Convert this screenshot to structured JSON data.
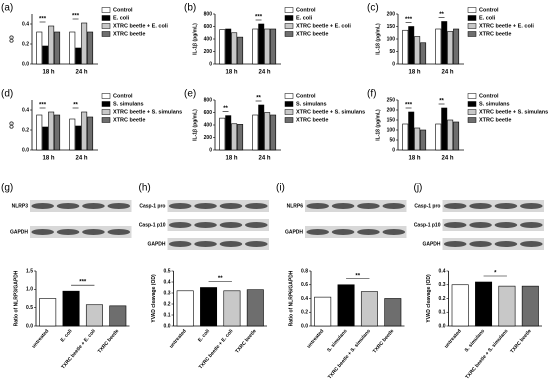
{
  "chart_data": [
    {
      "type": "grouped_bar",
      "label": "(a)",
      "ylabel": "OD",
      "categories": [
        "18 h",
        "24 h"
      ],
      "series": [
        {
          "name": "Control",
          "color": "#ffffff",
          "values": [
            0.32,
            0.32
          ]
        },
        {
          "name": "E. coli",
          "color": "#000000",
          "values": [
            0.18,
            0.16
          ]
        },
        {
          "name": "XTRC beetle + E. coli",
          "color": "#c8c8c8",
          "values": [
            0.38,
            0.41
          ]
        },
        {
          "name": "XTRC beetle",
          "color": "#6e6e6e",
          "values": [
            0.32,
            0.32
          ]
        }
      ],
      "annotations": [
        "***",
        "***"
      ],
      "ylim": [
        0,
        0.5
      ],
      "yticks": [
        {
          "value": 0,
          "label": "0.0"
        },
        {
          "value": 0.2,
          "label": "0.2"
        },
        {
          "value": 0.4,
          "label": "0.4"
        }
      ]
    },
    {
      "type": "grouped_bar",
      "label": "(b)",
      "ylabel": "IL-1β (pg/mL)",
      "categories": [
        "18 h",
        "24 h"
      ],
      "series": [
        {
          "name": "Control",
          "color": "#ffffff",
          "values": [
            550,
            560
          ]
        },
        {
          "name": "E. coli",
          "color": "#000000",
          "values": [
            560,
            640
          ]
        },
        {
          "name": "XTRC beetle + E. coli",
          "color": "#c8c8c8",
          "values": [
            500,
            560
          ]
        },
        {
          "name": "XTRC beetle",
          "color": "#6e6e6e",
          "values": [
            430,
            560
          ]
        }
      ],
      "annotations": [
        null,
        "***"
      ],
      "ylim": [
        0,
        800
      ],
      "yticks": [
        0,
        200,
        400,
        600,
        800
      ]
    },
    {
      "type": "grouped_bar",
      "label": "(c)",
      "ylabel": "IL-18 (pg/mL)",
      "categories": [
        "18 h",
        "24 h"
      ],
      "series": [
        {
          "name": "Control",
          "color": "#ffffff",
          "values": [
            135,
            140
          ]
        },
        {
          "name": "E. coli",
          "color": "#000000",
          "values": [
            150,
            170
          ]
        },
        {
          "name": "XTRC beetle + E. coli",
          "color": "#c8c8c8",
          "values": [
            110,
            130
          ]
        },
        {
          "name": "XTRC beetle",
          "color": "#6e6e6e",
          "values": [
            85,
            140
          ]
        }
      ],
      "annotations": [
        "***",
        "**"
      ],
      "ylim": [
        0,
        200
      ],
      "yticks": [
        0,
        50,
        100,
        150,
        200
      ]
    },
    {
      "type": "grouped_bar",
      "label": "(d)",
      "ylabel": "OD",
      "categories": [
        "18 h",
        "24 h"
      ],
      "series": [
        {
          "name": "Control",
          "color": "#ffffff",
          "values": [
            0.35,
            0.31
          ]
        },
        {
          "name": "S. simulans",
          "color": "#000000",
          "values": [
            0.23,
            0.24
          ]
        },
        {
          "name": "XTRC beetle + S. simulans",
          "color": "#c8c8c8",
          "values": [
            0.38,
            0.38
          ]
        },
        {
          "name": "XTRC beetle",
          "color": "#6e6e6e",
          "values": [
            0.35,
            0.33
          ]
        }
      ],
      "annotations": [
        "***",
        "**"
      ],
      "ylim": [
        0,
        0.5
      ],
      "yticks": [
        {
          "value": 0,
          "label": "0.0"
        },
        {
          "value": 0.2,
          "label": "0.2"
        },
        {
          "value": 0.4,
          "label": "0.4"
        }
      ]
    },
    {
      "type": "grouped_bar",
      "label": "(e)",
      "ylabel": "IL-1β (pg/mL)",
      "categories": [
        "18 h",
        "24 h"
      ],
      "series": [
        {
          "name": "Control",
          "color": "#ffffff",
          "values": [
            510,
            560
          ]
        },
        {
          "name": "S. simulans",
          "color": "#000000",
          "values": [
            550,
            720
          ]
        },
        {
          "name": "XTRC beetle + S. simulans",
          "color": "#c8c8c8",
          "values": [
            420,
            600
          ]
        },
        {
          "name": "XTRC beetle",
          "color": "#6e6e6e",
          "values": [
            410,
            560
          ]
        }
      ],
      "annotations": [
        "**",
        "**"
      ],
      "ylim": [
        0,
        800
      ],
      "yticks": [
        0,
        200,
        400,
        600,
        800
      ]
    },
    {
      "type": "grouped_bar",
      "label": "(f)",
      "ylabel": "IL-18 (pg/mL)",
      "categories": [
        "18 h",
        "24 h"
      ],
      "series": [
        {
          "name": "Control",
          "color": "#ffffff",
          "values": [
            130,
            130
          ]
        },
        {
          "name": "S. simulans",
          "color": "#000000",
          "values": [
            190,
            210
          ]
        },
        {
          "name": "XTRC beetle + S. simulans",
          "color": "#c8c8c8",
          "values": [
            110,
            150
          ]
        },
        {
          "name": "XTRC beetle",
          "color": "#6e6e6e",
          "values": [
            100,
            140
          ]
        }
      ],
      "annotations": [
        "***",
        "**"
      ],
      "ylim": [
        0,
        250
      ],
      "yticks": [
        0,
        50,
        100,
        150,
        200,
        250
      ]
    },
    {
      "type": "bar",
      "label": "(g)",
      "blot_labels": [
        "NLRP3",
        "GAPDH"
      ],
      "ylabel": "Ratio of NLRP3/GAPDH",
      "categories": [
        "untreated",
        "E. coli",
        "TXRC beetle + E. coli",
        "TXRC beetle"
      ],
      "values": [
        0.75,
        0.95,
        0.58,
        0.55
      ],
      "colors": [
        "#ffffff",
        "#000000",
        "#c8c8c8",
        "#6e6e6e"
      ],
      "annotation": "***",
      "ylim": [
        0,
        1.5
      ],
      "yticks": [
        {
          "value": 0,
          "label": "0.0"
        },
        {
          "value": 0.5,
          "label": "0.5"
        },
        {
          "value": 1,
          "label": "1.0"
        },
        {
          "value": 1.5,
          "label": "1.5"
        }
      ]
    },
    {
      "type": "bar",
      "label": "(h)",
      "blot_labels": [
        "Casp-1 pro",
        "Casp-1 p10",
        "GAPDH"
      ],
      "ylabel": "YVAD cleavage (OD)",
      "categories": [
        "untreated",
        "E. coli",
        "TXRC beetle + E. coli",
        "TXRC beetle"
      ],
      "values": [
        0.32,
        0.35,
        0.32,
        0.33
      ],
      "colors": [
        "#ffffff",
        "#000000",
        "#c8c8c8",
        "#6e6e6e"
      ],
      "annotation": "**",
      "ylim": [
        0,
        0.5
      ],
      "yticks": [
        {
          "value": 0,
          "label": "0.0"
        },
        {
          "value": 0.1,
          "label": "0.1"
        },
        {
          "value": 0.2,
          "label": "0.2"
        },
        {
          "value": 0.3,
          "label": "0.3"
        },
        {
          "value": 0.4,
          "label": "0.4"
        },
        {
          "value": 0.5,
          "label": "0.5"
        }
      ]
    },
    {
      "type": "bar",
      "label": "(i)",
      "blot_labels": [
        "NLRP6",
        "GAPDH"
      ],
      "ylabel": "Ratio of NLRP6/GAPDH",
      "categories": [
        "untreated",
        "S. simulans",
        "TXRC beetle + S. simulans",
        "TXRC beetle"
      ],
      "values": [
        0.42,
        0.6,
        0.5,
        0.4
      ],
      "colors": [
        "#ffffff",
        "#000000",
        "#c8c8c8",
        "#6e6e6e"
      ],
      "annotation": "**",
      "ylim": [
        0,
        0.8
      ],
      "yticks": [
        {
          "value": 0,
          "label": "0.0"
        },
        {
          "value": 0.2,
          "label": "0.2"
        },
        {
          "value": 0.4,
          "label": "0.4"
        },
        {
          "value": 0.6,
          "label": "0.6"
        },
        {
          "value": 0.8,
          "label": "0.8"
        }
      ]
    },
    {
      "type": "bar",
      "label": "(j)",
      "blot_labels": [
        "Casp-1 pro",
        "Casp-1 p10",
        "GAPDH"
      ],
      "ylabel": "YVAD cleavage (OD)",
      "categories": [
        "untreated",
        "S. simulans",
        "TXRC beetle + S. simulans",
        "TXRC beetle"
      ],
      "values": [
        0.3,
        0.32,
        0.29,
        0.29
      ],
      "colors": [
        "#ffffff",
        "#000000",
        "#c8c8c8",
        "#6e6e6e"
      ],
      "annotation": "*",
      "ylim": [
        0,
        0.4
      ],
      "yticks": [
        {
          "value": 0,
          "label": "0.0"
        },
        {
          "value": 0.1,
          "label": "0.1"
        },
        {
          "value": 0.2,
          "label": "0.2"
        },
        {
          "value": 0.3,
          "label": "0.3"
        },
        {
          "value": 0.4,
          "label": "0.4"
        }
      ]
    }
  ]
}
